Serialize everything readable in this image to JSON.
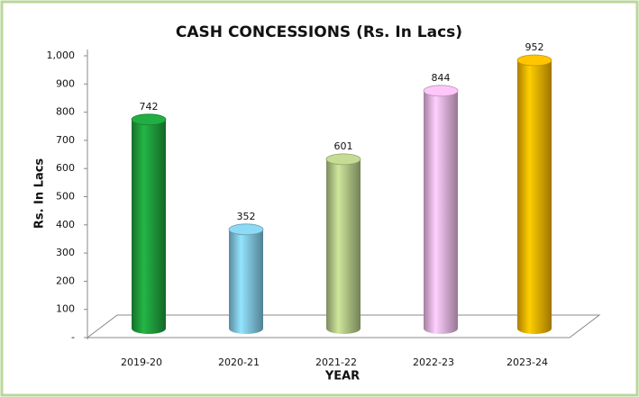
{
  "chart_data": {
    "type": "bar",
    "title": "CASH CONCESSIONS (Rs. In Lacs)",
    "xlabel": "YEAR",
    "ylabel": "Rs. In Lacs",
    "categories": [
      "2019-20",
      "2020-21",
      "2021-22",
      "2022-23",
      "2023-24"
    ],
    "values": [
      742,
      352,
      601,
      844,
      952
    ],
    "colors": [
      "#1f9e3d",
      "#80c6e0",
      "#b3c887",
      "#e9b5e2",
      "#f4b400"
    ],
    "ylim": [
      0,
      1000
    ],
    "yticks": [
      {
        "value": 0,
        "label": "-"
      },
      100,
      200,
      300,
      400,
      500,
      600,
      700,
      800,
      900,
      {
        "value": 1000,
        "label": "1,000"
      }
    ],
    "grid": false
  }
}
